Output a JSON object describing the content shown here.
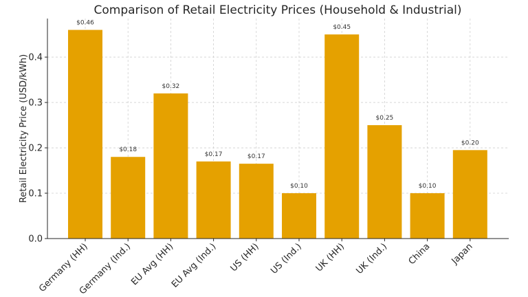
{
  "chart_data": {
    "type": "bar",
    "title": "Comparison of Retail Electricity Prices (Household & Industrial)",
    "xlabel": "",
    "ylabel": "Retail Electricity Price (USD/kWh)",
    "categories": [
      "Germany (HH)",
      "Germany (Ind.)",
      "EU Avg (HH)",
      "EU Avg (Ind.)",
      "US (HH)",
      "US (Ind.)",
      "UK (HH)",
      "UK (Ind.)",
      "China",
      "Japan"
    ],
    "values": [
      0.46,
      0.18,
      0.32,
      0.17,
      0.165,
      0.1,
      0.45,
      0.25,
      0.1,
      0.195
    ],
    "data_labels": [
      "$0.46",
      "$0.18",
      "$0.32",
      "$0.17",
      "$0.17",
      "$0.10",
      "$0.45",
      "$0.25",
      "$0.10",
      "$0.20"
    ],
    "ylim": [
      0,
      0.485
    ],
    "yticks": [
      0.0,
      0.1,
      0.2,
      0.3,
      0.4
    ],
    "ytick_labels": [
      "0.0",
      "0.1",
      "0.2",
      "0.3",
      "0.4"
    ],
    "grid": true,
    "bar_color": "#E5A100"
  }
}
